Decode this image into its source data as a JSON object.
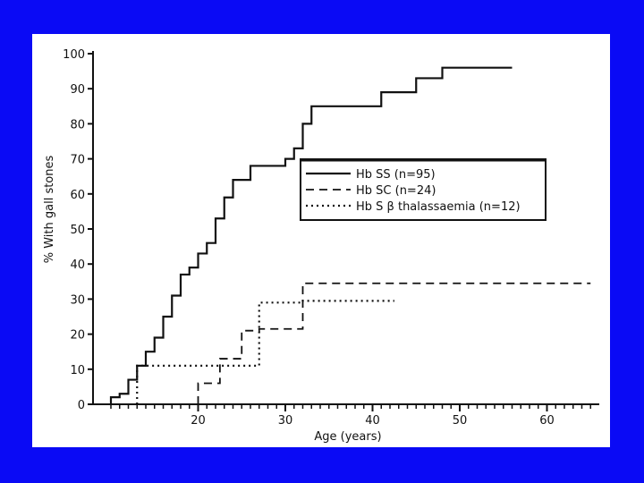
{
  "colors": {
    "frame": "#0a0af5",
    "panel": "#ffffff",
    "ink": "#111111"
  },
  "chart_data": {
    "type": "line",
    "step": true,
    "title": "",
    "xlabel": "Age (years)",
    "ylabel": "% With gall stones",
    "xlim": [
      10,
      66
    ],
    "ylim": [
      0,
      100
    ],
    "x_ticks": [
      20,
      30,
      40,
      50,
      60
    ],
    "x_minor_ticks": [
      10,
      11,
      12,
      13,
      14,
      15,
      16,
      17,
      18,
      19,
      21,
      22,
      23,
      24,
      25,
      26,
      27,
      28,
      29,
      31,
      32,
      33,
      34,
      35,
      36,
      37,
      38,
      39,
      41,
      42,
      43,
      44,
      45,
      46,
      47,
      48,
      49,
      51,
      52,
      53,
      54,
      55,
      56,
      57,
      58,
      59,
      61,
      62,
      63,
      64,
      65
    ],
    "y_ticks": [
      0,
      10,
      20,
      30,
      40,
      50,
      60,
      70,
      80,
      90,
      100
    ],
    "grid": false,
    "legend_position": "upper-right-inside",
    "series": [
      {
        "name": "Hb SS (n=95)",
        "style": "solid",
        "x": [
          10,
          11,
          12,
          13,
          14,
          15,
          16,
          17,
          18,
          19,
          20,
          21,
          22,
          23,
          24,
          26,
          30,
          31,
          32,
          33,
          41,
          45,
          48,
          56
        ],
        "y": [
          2,
          3,
          7,
          11,
          15,
          19,
          25,
          31,
          37,
          39,
          43,
          46,
          53,
          59,
          64,
          68,
          70,
          73,
          80,
          85,
          89,
          93,
          96,
          96
        ]
      },
      {
        "name": "Hb SC (n=24)",
        "style": "dashed",
        "x": [
          20,
          22.5,
          25,
          27,
          32,
          65
        ],
        "y": [
          6,
          13,
          21,
          21.5,
          34.5,
          34.5
        ]
      },
      {
        "name": "Hb S β thalassaemia (n=12)",
        "style": "dotted",
        "x": [
          13,
          27,
          32,
          42.5
        ],
        "y": [
          11,
          29,
          29.5,
          29.5
        ]
      }
    ]
  }
}
